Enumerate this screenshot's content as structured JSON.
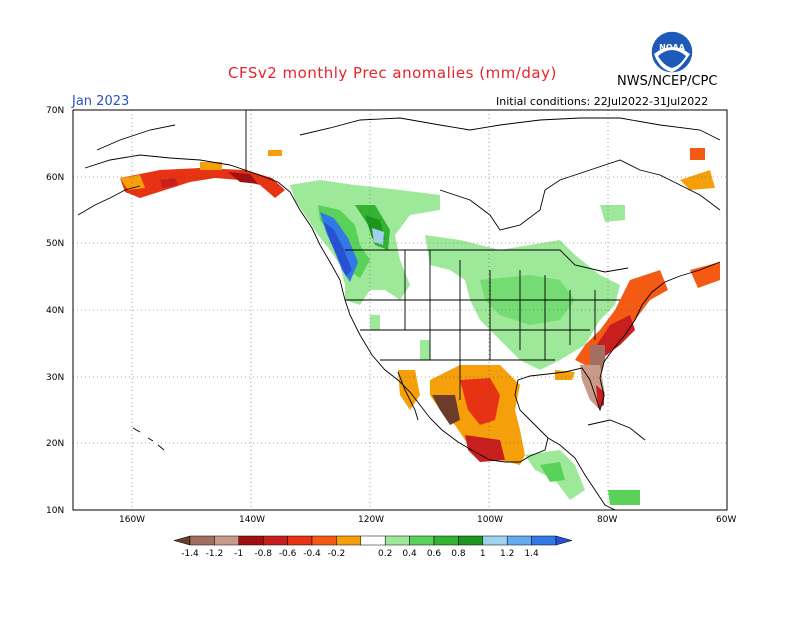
{
  "title": "CFSv2 monthly Prec anomalies (mm/day)",
  "agency": "NWS/NCEP/CPC",
  "logo_text": "NOAA",
  "valid_month": "Jan 2023",
  "initial_conditions": "Initial conditions: 22Jul2022-31Jul2022",
  "map": {
    "projection": "lat-lon",
    "lon_range": [
      -170,
      -60
    ],
    "lat_range": [
      10,
      70
    ],
    "lat_labels": [
      "70N",
      "60N",
      "50N",
      "40N",
      "30N",
      "20N",
      "10N"
    ],
    "lon_labels": [
      "160W",
      "140W",
      "120W",
      "100W",
      "80W",
      "60W"
    ],
    "grid": true
  },
  "colorbar": {
    "labels": [
      "-1.4",
      "-1.2",
      "-1",
      "-0.8",
      "-0.6",
      "-0.4",
      "-0.2",
      "0.2",
      "0.4",
      "0.6",
      "0.8",
      "1",
      "1.2",
      "1.4"
    ],
    "colors": [
      "#6b3c2c",
      "#a27060",
      "#c89a8a",
      "#a01010",
      "#c81e1e",
      "#e83214",
      "#f55a14",
      "#f5a00a",
      "#ffffff",
      "#9ee89a",
      "#5ad25a",
      "#32b432",
      "#1e961e",
      "#a0d2f0",
      "#64aaf0",
      "#3278e6",
      "#2850d2"
    ]
  }
}
